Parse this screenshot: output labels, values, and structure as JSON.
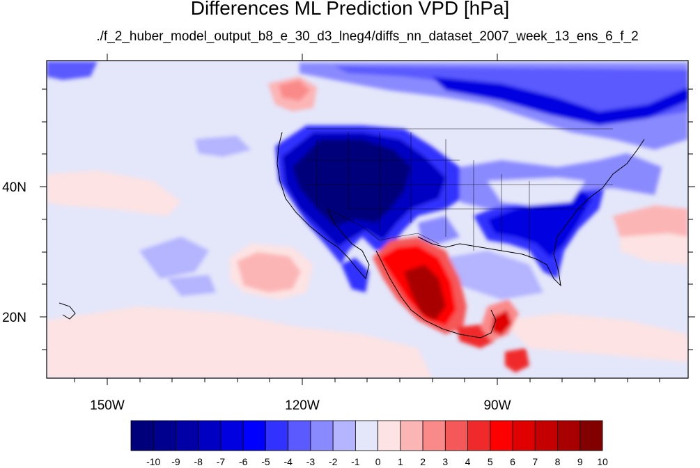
{
  "title": "Differences ML Prediction VPD [hPa]",
  "subtitle": "./f_2_huber_model_output_b8_e_30_d3_lneg4/diffs_nn_dataset_2007_week_13_ens_6_f_2",
  "map": {
    "lon_ticks": [
      "150W",
      "120W",
      "90W"
    ],
    "lat_ticks": [
      "40N",
      "20N"
    ]
  },
  "colorbar": {
    "labels": [
      "-10",
      "-9",
      "-8",
      "-7",
      "-6",
      "-5",
      "-4",
      "-3",
      "-2",
      "-1",
      "0",
      "1",
      "2",
      "3",
      "4",
      "5",
      "6",
      "7",
      "8",
      "9",
      "10"
    ],
    "colors": [
      "#00007a",
      "#00008f",
      "#0000a6",
      "#0000c2",
      "#0000e0",
      "#0000ff",
      "#3232ff",
      "#5a5aff",
      "#8a8aff",
      "#b4b4ff",
      "#e4e6fa",
      "#fde3e3",
      "#fcb5b5",
      "#fa8a8a",
      "#f55858",
      "#f02a2a",
      "#ff0000",
      "#e00000",
      "#c40000",
      "#a80000",
      "#820000"
    ]
  }
}
